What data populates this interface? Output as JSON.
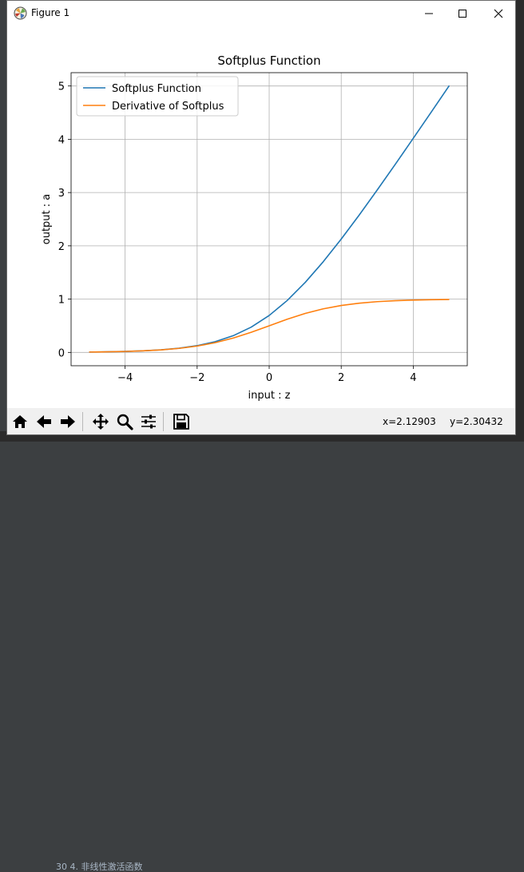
{
  "window": {
    "title": "Figure 1",
    "app_icon": "matplotlib-figure-icon"
  },
  "title_buttons": [
    "minimize-icon",
    "maximize-icon",
    "close-icon"
  ],
  "toolbar": {
    "buttons": [
      "home-icon",
      "back-arrow-icon",
      "forward-arrow-icon",
      "pan-move-icon",
      "zoom-magnifier-icon",
      "configure-subplots-icon",
      "save-disk-icon"
    ],
    "x_readout": "x=2.12903",
    "y_readout": "y=2.30432"
  },
  "background": {
    "editor_text": "30    4.  非线性激活函数"
  },
  "chart_data": {
    "type": "line",
    "title": "Softplus Function",
    "xlabel": "input : z",
    "ylabel": "output : a",
    "xlim": [
      -5.5,
      5.5
    ],
    "ylim": [
      -0.25,
      5.25
    ],
    "xticks": [
      -4,
      -2,
      0,
      2,
      4
    ],
    "xtick_labels": [
      "−4",
      "−2",
      "0",
      "2",
      "4"
    ],
    "yticks": [
      0,
      1,
      2,
      3,
      4,
      5
    ],
    "ytick_labels": [
      "0",
      "1",
      "2",
      "3",
      "4",
      "5"
    ],
    "grid": true,
    "legend_position": "top-left",
    "x": [
      -5,
      -4.5,
      -4,
      -3.5,
      -3,
      -2.5,
      -2,
      -1.5,
      -1,
      -0.5,
      0,
      0.5,
      1,
      1.5,
      2,
      2.5,
      3,
      3.5,
      4,
      4.5,
      5
    ],
    "series": [
      {
        "name": "Softplus Function",
        "color": "#1f77b4",
        "values": [
          0.0067,
          0.011,
          0.0181,
          0.0298,
          0.0486,
          0.0789,
          0.1269,
          0.2014,
          0.3133,
          0.4741,
          0.6931,
          0.9741,
          1.3133,
          1.7014,
          2.1269,
          2.5789,
          3.0486,
          3.5298,
          4.0181,
          4.511,
          5.0067
        ]
      },
      {
        "name": "Derivative of Softplus",
        "color": "#ff7f0e",
        "values": [
          0.0067,
          0.011,
          0.018,
          0.0293,
          0.0474,
          0.0759,
          0.1192,
          0.1824,
          0.2689,
          0.3775,
          0.5,
          0.6225,
          0.7311,
          0.8176,
          0.8808,
          0.9241,
          0.9526,
          0.9707,
          0.982,
          0.989,
          0.9933
        ]
      }
    ]
  }
}
